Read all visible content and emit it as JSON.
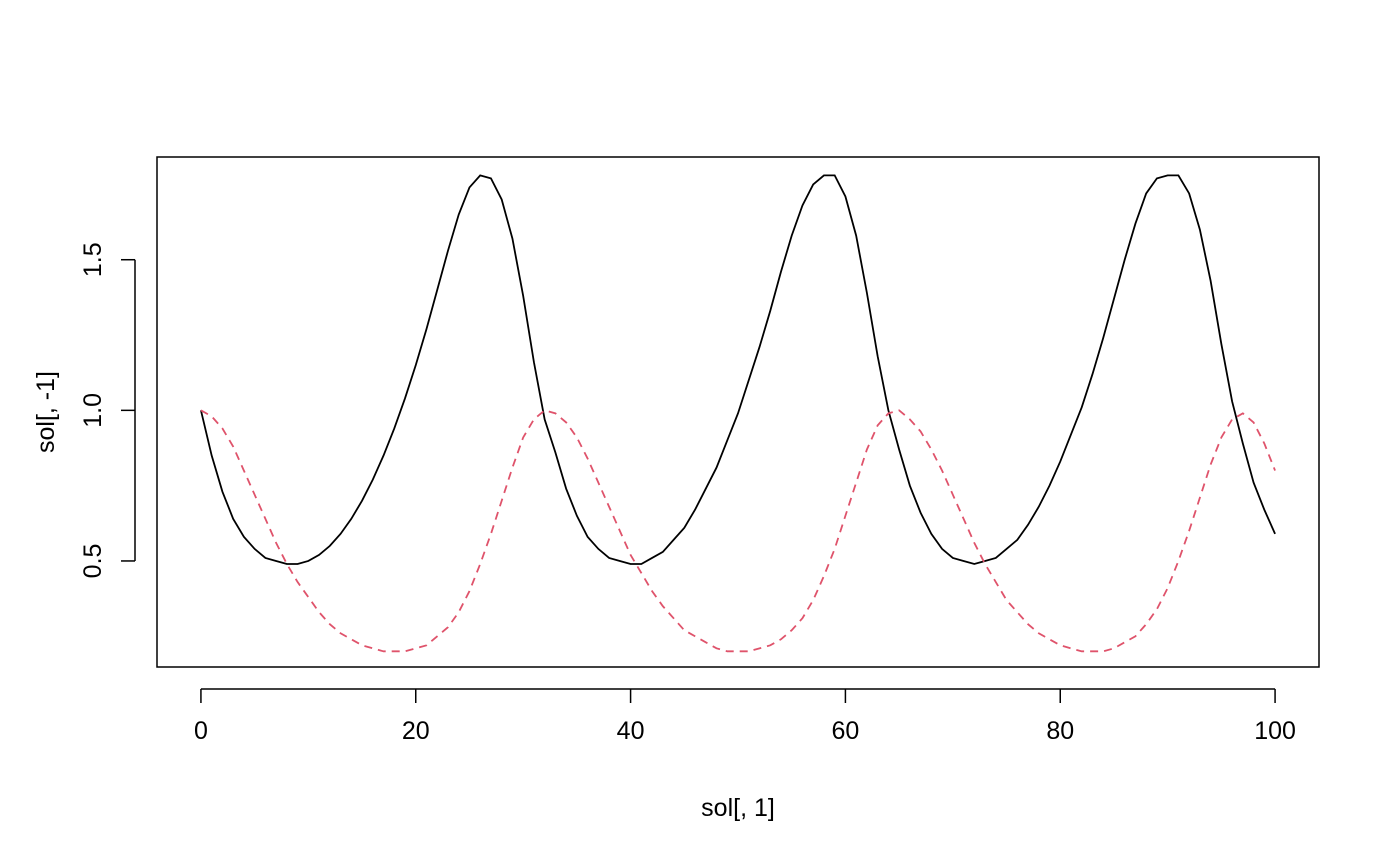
{
  "chart_data": {
    "type": "line",
    "xlabel": "sol[, 1]",
    "ylabel": "sol[, -1]",
    "x": [
      0,
      1,
      2,
      3,
      4,
      5,
      6,
      7,
      8,
      9,
      10,
      11,
      12,
      13,
      14,
      15,
      16,
      17,
      18,
      19,
      20,
      21,
      22,
      23,
      24,
      25,
      26,
      27,
      28,
      29,
      30,
      31,
      32,
      33,
      34,
      35,
      36,
      37,
      38,
      39,
      40,
      41,
      42,
      43,
      44,
      45,
      46,
      47,
      48,
      49,
      50,
      51,
      52,
      53,
      54,
      55,
      56,
      57,
      58,
      59,
      60,
      61,
      62,
      63,
      64,
      65,
      66,
      67,
      68,
      69,
      70,
      71,
      72,
      73,
      74,
      75,
      76,
      77,
      78,
      79,
      80,
      81,
      82,
      83,
      84,
      85,
      86,
      87,
      88,
      89,
      90,
      91,
      92,
      93,
      94,
      95,
      96,
      97,
      98,
      99,
      100
    ],
    "series": [
      {
        "color": "#000000",
        "dash": "solid",
        "values": [
          1.0,
          0.85,
          0.73,
          0.64,
          0.58,
          0.54,
          0.51,
          0.5,
          0.49,
          0.49,
          0.5,
          0.52,
          0.55,
          0.59,
          0.64,
          0.7,
          0.77,
          0.85,
          0.94,
          1.04,
          1.15,
          1.27,
          1.4,
          1.53,
          1.65,
          1.74,
          1.78,
          1.77,
          1.7,
          1.57,
          1.38,
          1.16,
          0.97,
          0.86,
          0.74,
          0.65,
          0.58,
          0.54,
          0.51,
          0.5,
          0.49,
          0.49,
          0.51,
          0.53,
          0.57,
          0.61,
          0.67,
          0.74,
          0.81,
          0.9,
          0.99,
          1.1,
          1.21,
          1.33,
          1.46,
          1.58,
          1.68,
          1.75,
          1.78,
          1.78,
          1.71,
          1.58,
          1.39,
          1.18,
          1.0,
          0.87,
          0.75,
          0.66,
          0.59,
          0.54,
          0.51,
          0.5,
          0.49,
          0.5,
          0.51,
          0.54,
          0.57,
          0.62,
          0.68,
          0.75,
          0.83,
          0.92,
          1.01,
          1.12,
          1.24,
          1.37,
          1.5,
          1.62,
          1.72,
          1.77,
          1.78,
          1.78,
          1.72,
          1.6,
          1.43,
          1.22,
          1.03,
          0.89,
          0.76,
          0.67,
          0.59
        ]
      },
      {
        "color": "#DF536B",
        "dash": "dashed",
        "values": [
          1.0,
          0.98,
          0.94,
          0.88,
          0.8,
          0.72,
          0.64,
          0.56,
          0.49,
          0.43,
          0.38,
          0.33,
          0.29,
          0.26,
          0.24,
          0.22,
          0.21,
          0.2,
          0.2,
          0.2,
          0.21,
          0.22,
          0.25,
          0.28,
          0.33,
          0.4,
          0.49,
          0.59,
          0.7,
          0.81,
          0.91,
          0.97,
          1.0,
          0.99,
          0.96,
          0.91,
          0.84,
          0.76,
          0.68,
          0.6,
          0.52,
          0.46,
          0.4,
          0.35,
          0.31,
          0.27,
          0.25,
          0.23,
          0.21,
          0.2,
          0.2,
          0.2,
          0.21,
          0.22,
          0.24,
          0.27,
          0.31,
          0.37,
          0.45,
          0.54,
          0.65,
          0.76,
          0.87,
          0.95,
          0.99,
          1.0,
          0.97,
          0.93,
          0.87,
          0.8,
          0.72,
          0.64,
          0.56,
          0.49,
          0.43,
          0.37,
          0.33,
          0.29,
          0.26,
          0.24,
          0.22,
          0.21,
          0.2,
          0.2,
          0.2,
          0.21,
          0.23,
          0.25,
          0.29,
          0.34,
          0.41,
          0.5,
          0.6,
          0.71,
          0.82,
          0.91,
          0.97,
          0.99,
          0.96,
          0.89,
          0.8
        ]
      }
    ],
    "xlim": [
      -4.09,
      104.09
    ],
    "ylim": [
      0.148,
      1.841
    ],
    "xticks": [
      0,
      20,
      40,
      60,
      80,
      100
    ],
    "yticks": [
      0.5,
      {
        "value": 1,
        "label": "1.0"
      },
      1.5
    ]
  }
}
